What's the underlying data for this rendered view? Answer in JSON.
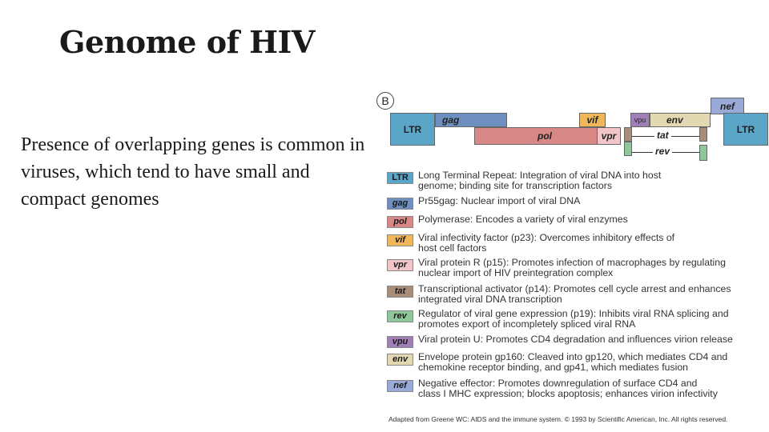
{
  "slide": {
    "title": "Genome of HIV",
    "body": "Presence of overlapping genes is common in viruses, which tend to have small and compact genomes"
  },
  "diagram": {
    "panel_label": "B",
    "genes": {
      "ltr_left": "LTR",
      "gag": "gag",
      "pol": "pol",
      "vif": "vif",
      "vpr": "vpr",
      "vpu": "vpu",
      "env": "env",
      "nef": "nef",
      "ltr_right": "LTR",
      "tat": "tat",
      "rev": "rev"
    },
    "colors": {
      "LTR": "#5aa5c8",
      "gag": "#6e8fc0",
      "pol": "#d98888",
      "vif": "#f0b75a",
      "vpr": "#f2c6c8",
      "tat": "#a88e7a",
      "rev": "#8fc79a",
      "vpu": "#a07fb7",
      "env": "#e2d9b2",
      "nef": "#9aaad8"
    },
    "legend": [
      {
        "abbr": "LTR",
        "color_key": "LTR",
        "upright": true,
        "text": "Long Terminal Repeat: Integration of viral DNA into host\ngenome; binding site for transcription factors"
      },
      {
        "abbr": "gag",
        "color_key": "gag",
        "upright": false,
        "text": "Pr55gag: Nuclear import of viral DNA"
      },
      {
        "abbr": "pol",
        "color_key": "pol",
        "upright": false,
        "text": "Polymerase: Encodes a variety of viral enzymes"
      },
      {
        "abbr": "vif",
        "color_key": "vif",
        "upright": false,
        "text": "Viral infectivity factor (p23): Overcomes inhibitory effects of\nhost cell factors"
      },
      {
        "abbr": "vpr",
        "color_key": "vpr",
        "upright": false,
        "text": "Viral protein R (p15): Promotes infection of macrophages by regulating\nnuclear import of HIV preintegration complex"
      },
      {
        "abbr": "tat",
        "color_key": "tat",
        "upright": false,
        "text": "Transcriptional activator (p14): Promotes cell cycle arrest and enhances\nintegrated viral DNA transcription"
      },
      {
        "abbr": "rev",
        "color_key": "rev",
        "upright": false,
        "text": "Regulator of viral gene expression (p19): Inhibits viral RNA splicing and\npromotes export of incompletely spliced viral RNA"
      },
      {
        "abbr": "vpu",
        "color_key": "vpu",
        "upright": false,
        "text": "Viral protein U: Promotes CD4 degradation and influences virion release"
      },
      {
        "abbr": "env",
        "color_key": "env",
        "upright": false,
        "text": "Envelope protein gp160: Cleaved into gp120, which mediates CD4 and\nchemokine receptor binding, and gp41, which mediates fusion"
      },
      {
        "abbr": "nef",
        "color_key": "nef",
        "upright": false,
        "text": "Negative effector: Promotes downregulation of surface CD4 and\nclass I MHC expression; blocks apoptosis; enhances virion infectivity"
      }
    ],
    "credit": "Adapted from Greene WC: AIDS and the immune system. © 1993 by Scientific American, Inc. All rights reserved."
  }
}
